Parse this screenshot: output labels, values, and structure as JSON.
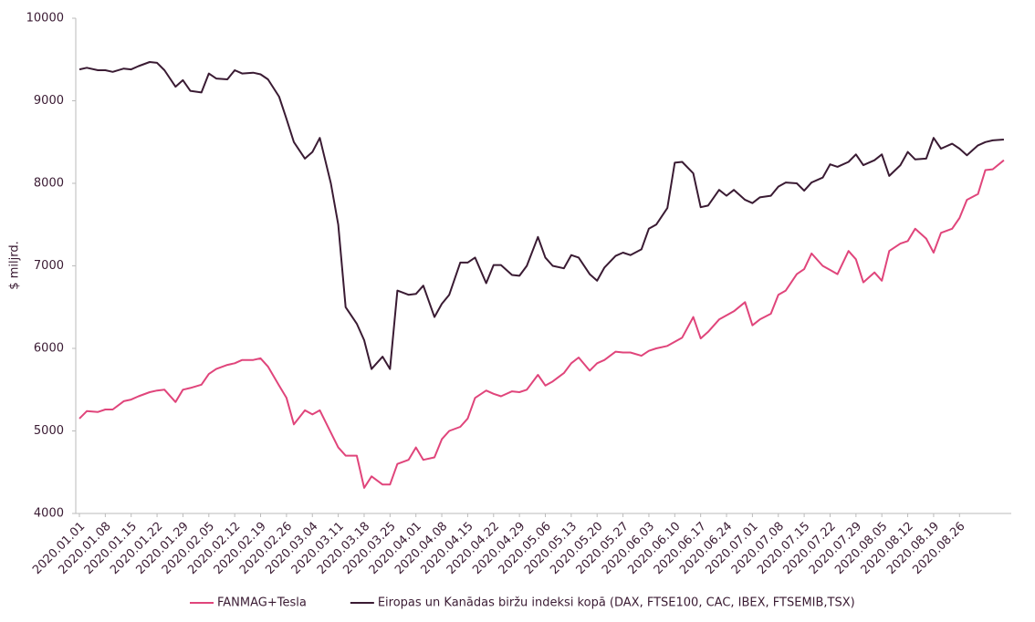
{
  "chart_data": {
    "type": "line",
    "y_label": "$ miljrd.",
    "x": [
      "2020.01.01",
      "2020.01.03",
      "2020.01.06",
      "2020.01.08",
      "2020.01.10",
      "2020.01.13",
      "2020.01.15",
      "2020.01.17",
      "2020.01.20",
      "2020.01.22",
      "2020.01.24",
      "2020.01.27",
      "2020.01.29",
      "2020.01.31",
      "2020.02.03",
      "2020.02.05",
      "2020.02.07",
      "2020.02.10",
      "2020.02.12",
      "2020.02.14",
      "2020.02.17",
      "2020.02.19",
      "2020.02.21",
      "2020.02.24",
      "2020.02.26",
      "2020.02.28",
      "2020.03.02",
      "2020.03.04",
      "2020.03.06",
      "2020.03.09",
      "2020.03.11",
      "2020.03.13",
      "2020.03.16",
      "2020.03.18",
      "2020.03.20",
      "2020.03.23",
      "2020.03.25",
      "2020.03.27",
      "2020.03.30",
      "2020.04.01",
      "2020.04.03",
      "2020.04.06",
      "2020.04.08",
      "2020.04.10",
      "2020.04.13",
      "2020.04.15",
      "2020.04.17",
      "2020.04.20",
      "2020.04.22",
      "2020.04.24",
      "2020.04.27",
      "2020.04.29",
      "2020.05.01",
      "2020.05.04",
      "2020.05.06",
      "2020.05.08",
      "2020.05.11",
      "2020.05.13",
      "2020.05.15",
      "2020.05.18",
      "2020.05.20",
      "2020.05.22",
      "2020.05.25",
      "2020.05.27",
      "2020.05.29",
      "2020.06.01",
      "2020.06.03",
      "2020.06.05",
      "2020.06.08",
      "2020.06.10",
      "2020.06.12",
      "2020.06.15",
      "2020.06.17",
      "2020.06.19",
      "2020.06.22",
      "2020.06.24",
      "2020.06.26",
      "2020.06.29",
      "2020.07.01",
      "2020.07.03",
      "2020.07.06",
      "2020.07.08",
      "2020.07.10",
      "2020.07.13",
      "2020.07.15",
      "2020.07.17",
      "2020.07.20",
      "2020.07.22",
      "2020.07.24",
      "2020.07.27",
      "2020.07.29",
      "2020.07.31",
      "2020.08.03",
      "2020.08.05",
      "2020.08.07",
      "2020.08.10",
      "2020.08.12",
      "2020.08.14",
      "2020.08.17",
      "2020.08.19",
      "2020.08.21",
      "2020.08.24",
      "2020.08.26",
      "2020.08.28",
      "2020.08.31",
      "2020.09.02",
      "2020.09.04",
      "2020.09.07"
    ],
    "series": [
      {
        "name": "FANMAG+Tesla",
        "color": "#e0457b",
        "values": [
          5150,
          5240,
          5230,
          5260,
          5260,
          5360,
          5380,
          5420,
          5470,
          5490,
          5500,
          5350,
          5500,
          5520,
          5560,
          5690,
          5750,
          5800,
          5820,
          5860,
          5860,
          5880,
          5780,
          5550,
          5400,
          5080,
          5250,
          5200,
          5250,
          4980,
          4800,
          4700,
          4700,
          4310,
          4450,
          4350,
          4350,
          4600,
          4650,
          4800,
          4650,
          4680,
          4900,
          5000,
          5050,
          5150,
          5400,
          5490,
          5450,
          5420,
          5480,
          5470,
          5500,
          5680,
          5550,
          5600,
          5700,
          5820,
          5890,
          5730,
          5820,
          5860,
          5960,
          5950,
          5950,
          5910,
          5970,
          6000,
          6030,
          6080,
          6130,
          6380,
          6120,
          6200,
          6350,
          6400,
          6450,
          6560,
          6280,
          6350,
          6420,
          6650,
          6700,
          6900,
          6960,
          7150,
          7000,
          6950,
          6900,
          7180,
          7080,
          6800,
          6920,
          6820,
          7180,
          7270,
          7300,
          7450,
          7330,
          7160,
          7400,
          7450,
          7580,
          7800,
          7870,
          8160,
          8170,
          8280
        ]
      },
      {
        "name": "Eiropas un Kanādas biržu indeksi kopā (DAX, FTSE100, CAC, IBEX, FTSEMIB,TSX)",
        "color": "#3a1b33",
        "values": [
          9380,
          9400,
          9370,
          9370,
          9350,
          9390,
          9380,
          9420,
          9470,
          9460,
          9370,
          9170,
          9250,
          9120,
          9100,
          9330,
          9270,
          9260,
          9370,
          9330,
          9340,
          9320,
          9260,
          9050,
          8780,
          8500,
          8300,
          8380,
          8550,
          8000,
          7500,
          6500,
          6300,
          6100,
          5750,
          5900,
          5750,
          6700,
          6650,
          6660,
          6760,
          6380,
          6540,
          6650,
          7040,
          7040,
          7100,
          6790,
          7010,
          7010,
          6890,
          6880,
          7000,
          7350,
          7100,
          7000,
          6970,
          7130,
          7100,
          6900,
          6820,
          6980,
          7120,
          7160,
          7130,
          7200,
          7450,
          7500,
          7700,
          8250,
          8260,
          8120,
          7710,
          7730,
          7920,
          7850,
          7920,
          7800,
          7760,
          7830,
          7850,
          7960,
          8010,
          8000,
          7910,
          8010,
          8070,
          8230,
          8200,
          8260,
          8350,
          8220,
          8280,
          8350,
          8090,
          8220,
          8380,
          8290,
          8300,
          8550,
          8420,
          8480,
          8420,
          8340,
          8460,
          8500,
          8520,
          8530
        ]
      }
    ],
    "xlim": [
      "2020.01.01",
      "2020.09.09"
    ],
    "xticks": [
      "2020.01.01",
      "2020.01.08",
      "2020.01.15",
      "2020.01.22",
      "2020.01.29",
      "2020.02.05",
      "2020.02.12",
      "2020.02.19",
      "2020.02.26",
      "2020.03.04",
      "2020.03.11",
      "2020.03.18",
      "2020.03.25",
      "2020.04.01",
      "2020.04.08",
      "2020.04.15",
      "2020.04.22",
      "2020.04.29",
      "2020.05.06",
      "2020.05.13",
      "2020.05.20",
      "2020.05.27",
      "2020.06.03",
      "2020.06.10",
      "2020.06.17",
      "2020.06.24",
      "2020.07.01",
      "2020.07.08",
      "2020.07.15",
      "2020.07.22",
      "2020.07.29",
      "2020.08.05",
      "2020.08.12",
      "2020.08.19",
      "2020.08.26"
    ],
    "ylim": [
      4000,
      10000
    ],
    "yticks": [
      4000,
      5000,
      6000,
      7000,
      8000,
      9000,
      10000
    ],
    "legend": "bottom"
  }
}
